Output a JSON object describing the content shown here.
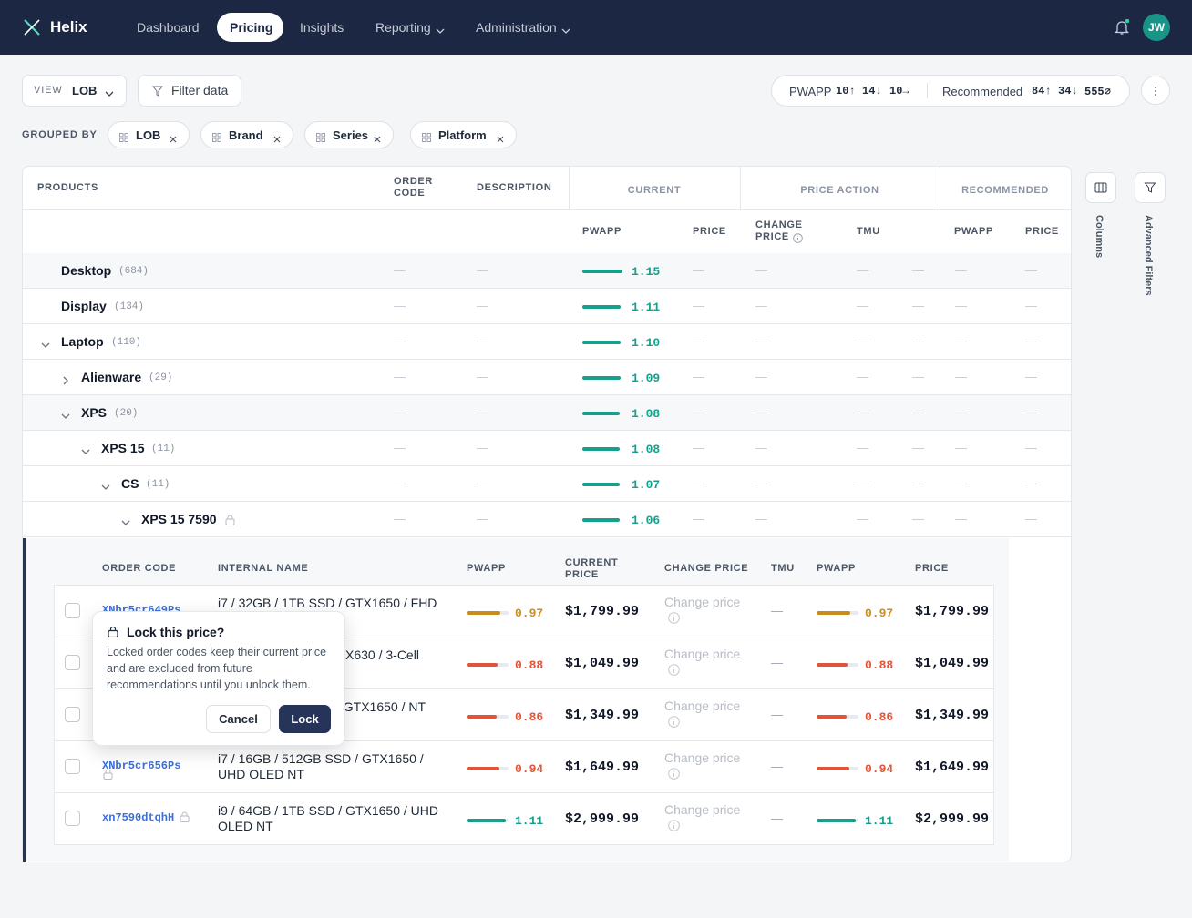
{
  "nav": {
    "brand": "Helix",
    "items": [
      "Dashboard",
      "Pricing",
      "Insights",
      "Reporting",
      "Administration"
    ],
    "avatar": "JW"
  },
  "toolbar": {
    "view_label": "VIEW",
    "view_value": "LOB",
    "filter": "Filter data",
    "pwapp_label": "PWAPP",
    "pwapp": [
      "10↑",
      "14↓",
      "10→"
    ],
    "rec_label": "Recommended",
    "rec": [
      "84↑",
      "34↓",
      "555∅"
    ]
  },
  "grouped_by": {
    "label": "GROUPED BY",
    "chips": [
      "LOB",
      "Brand",
      "Series",
      "Platform"
    ]
  },
  "table": {
    "headers": {
      "products": "PRODUCTS",
      "order_code": "ORDER CODE",
      "description": "DESCRIPTION",
      "current": "CURRENT",
      "price_action": "PRICE ACTION",
      "recommended": "RECOMMENDED",
      "sub": [
        "PWAPP",
        "PRICE",
        "CHANGE PRICE",
        "TMU",
        "PWAPP",
        "PRICE"
      ]
    },
    "empty": "—",
    "rows": [
      {
        "name": "Desktop",
        "count": "(684)",
        "pwapp": "1.15"
      },
      {
        "name": "Display",
        "count": "(134)",
        "pwapp": "1.11"
      },
      {
        "name": "Laptop",
        "count": "(110)",
        "pwapp": "1.10"
      },
      {
        "name": "Alienware",
        "count": "(29)",
        "pwapp": "1.09"
      },
      {
        "name": "XPS",
        "count": "(20)",
        "pwapp": "1.08"
      },
      {
        "name": "XPS 15",
        "count": "(11)",
        "pwapp": "1.08"
      },
      {
        "name": "CS",
        "count": "(11)",
        "pwapp": "1.07"
      },
      {
        "name": "XPS 15 7590",
        "pwapp": "1.06"
      }
    ]
  },
  "detail": {
    "headers": [
      "ORDER CODE",
      "INTERNAL NAME",
      "PWAPP",
      "CURRENT PRICE",
      "CHANGE PRICE",
      "TMU",
      "PWAPP",
      "PRICE"
    ],
    "change_placeholder": "Change price",
    "rows": [
      {
        "code": "XNbr5cr649Ps",
        "name": "i7 / 32GB / 1TB SSD / GTX1650 / FHD",
        "pwapp": "0.97",
        "color": "#c98d1c",
        "current": "$1,799.99",
        "tmu": "—",
        "rec_pwapp": "0.97",
        "price": "$1,799.99"
      },
      {
        "name": "X630 / 3-Cell",
        "pwapp": "0.88",
        "color": "#e0553a",
        "current": "$1,049.99",
        "tmu": "—",
        "rec_pwapp": "0.88",
        "price": "$1,049.99"
      },
      {
        "name": "/ GTX1650 / NT",
        "pwapp": "0.86",
        "color": "#e0553a",
        "current": "$1,349.99",
        "tmu": "—",
        "rec_pwapp": "0.86",
        "price": "$1,349.99"
      },
      {
        "code": "XNbr5cr656Ps",
        "name": "i7 / 16GB / 512GB SSD / GTX1650 / UHD OLED NT",
        "pwapp": "0.94",
        "color": "#e0553a",
        "current": "$1,649.99",
        "tmu": "—",
        "rec_pwapp": "0.94",
        "price": "$1,649.99"
      },
      {
        "code": "xn7590dtqhH",
        "name": "i9 / 64GB / 1TB SSD / GTX1650 / UHD OLED NT",
        "pwapp": "1.11",
        "color": "#15a08b",
        "current": "$2,999.99",
        "tmu": "—",
        "rec_pwapp": "1.11",
        "price": "$2,999.99"
      }
    ]
  },
  "popover": {
    "title": "Lock this price?",
    "body": "Locked order codes keep their current price and are excluded from future recommendations until you unlock them.",
    "cancel": "Cancel",
    "confirm": "Lock"
  },
  "rail": {
    "columns": "Columns",
    "filters": "Advanced Filters"
  }
}
